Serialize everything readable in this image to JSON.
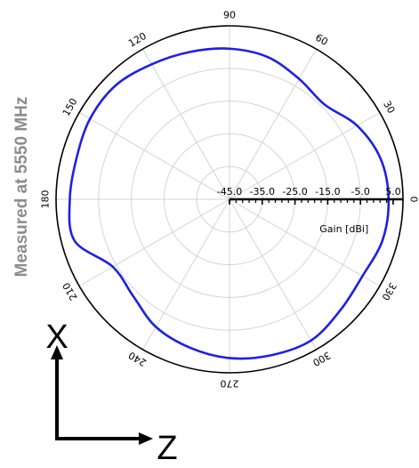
{
  "side_label": "Measured at 5550 MHz",
  "axis_x_letter": "X",
  "axis_z_letter": "Z",
  "colors": {
    "pattern": "#1f1fe6",
    "grid": "#d4d4d4",
    "outer_ring": "#000000",
    "side_label": "#8c8c8c",
    "arrows": "#000000"
  },
  "chart_data": {
    "type": "polar-line",
    "theta_unit": "deg",
    "theta_ticks": [
      "0",
      "30",
      "60",
      "90",
      "120",
      "150",
      "180",
      "210",
      "240",
      "270",
      "300",
      "330"
    ],
    "radial_label": "Gain [dBi]",
    "radial_ticks": [
      "-45.0",
      "-35.0",
      "-25.0",
      "-15.0",
      "-5.0",
      "5.0"
    ],
    "rlim": [
      -45,
      8
    ],
    "grid": true,
    "series": [
      {
        "theta": [
          0,
          15,
          30,
          45,
          60,
          75,
          90,
          105,
          120,
          135,
          150,
          165,
          180,
          195,
          210,
          225,
          240,
          255,
          270,
          285,
          300,
          315,
          330,
          345
        ],
        "r": [
          3.6,
          2.8,
          0.0,
          -4.0,
          -2.5,
          0.0,
          1.0,
          1.6,
          2.6,
          4.2,
          4.2,
          3.4,
          3.8,
          4.0,
          -3.8,
          -3.3,
          0.0,
          1.9,
          3.5,
          4.3,
          4.8,
          2.9,
          1.9,
          3.4
        ]
      }
    ]
  }
}
